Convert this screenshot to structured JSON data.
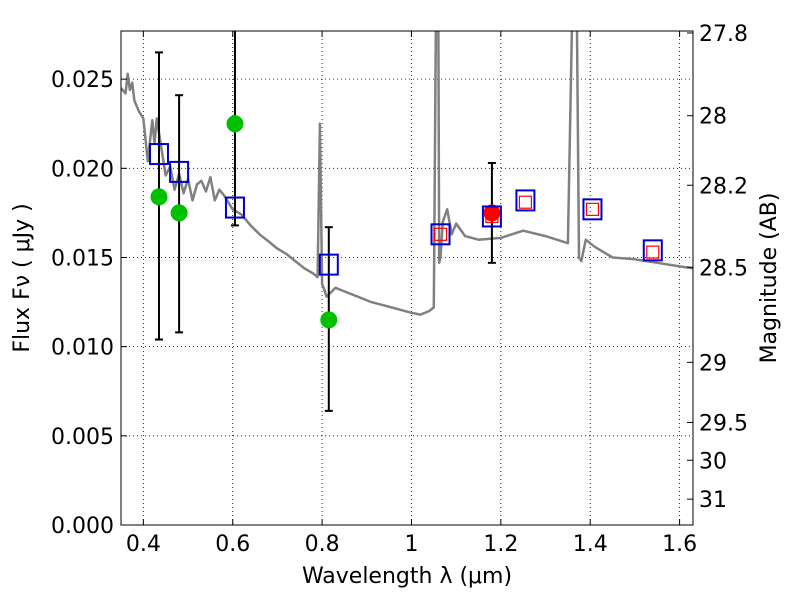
{
  "chart_data": {
    "type": "scatter",
    "xlabel": "Wavelength  λ (μm)",
    "ylabel_left": "Flux  Fν  ( μJy )",
    "ylabel_right": "Magnitude (AB)",
    "xlim": [
      0.35,
      1.63
    ],
    "ylim": [
      0.0,
      0.0277
    ],
    "grid": true,
    "x_ticks": [
      {
        "value": 0.4,
        "label": "0.4"
      },
      {
        "value": 0.6,
        "label": "0.6"
      },
      {
        "value": 0.8,
        "label": "0.8"
      },
      {
        "value": 1.0,
        "label": "1"
      },
      {
        "value": 1.2,
        "label": "1.2"
      },
      {
        "value": 1.4,
        "label": "1.4"
      },
      {
        "value": 1.6,
        "label": "1.6"
      }
    ],
    "y_ticks": [
      {
        "value": 0.0,
        "label": "0.000"
      },
      {
        "value": 0.005,
        "label": "0.005"
      },
      {
        "value": 0.01,
        "label": "0.010"
      },
      {
        "value": 0.015,
        "label": "0.015"
      },
      {
        "value": 0.02,
        "label": "0.020"
      },
      {
        "value": 0.025,
        "label": "0.025"
      }
    ],
    "mag_ticks": [
      {
        "label": "27.8",
        "flux": 0.02759
      },
      {
        "label": "28",
        "flux": 0.02295
      },
      {
        "label": "28.2",
        "flux": 0.01905
      },
      {
        "label": "28.5",
        "flux": 0.01445
      },
      {
        "label": "29",
        "flux": 0.00912
      },
      {
        "label": "29.5",
        "flux": 0.00575
      },
      {
        "label": "30",
        "flux": 0.00363
      },
      {
        "label": "31",
        "flux": 0.00145
      }
    ],
    "colors": {
      "model": "#808080",
      "green": "#00c000",
      "red": "#ff0000",
      "blue": "#0000cc",
      "errorbar": "#000000"
    },
    "model_sed": {
      "x": [
        0.35,
        0.36,
        0.365,
        0.37,
        0.375,
        0.38,
        0.39,
        0.4,
        0.41,
        0.42,
        0.425,
        0.43,
        0.44,
        0.45,
        0.46,
        0.47,
        0.48,
        0.49,
        0.5,
        0.51,
        0.52,
        0.53,
        0.54,
        0.55,
        0.56,
        0.57,
        0.58,
        0.59,
        0.6,
        0.62,
        0.64,
        0.66,
        0.68,
        0.7,
        0.72,
        0.74,
        0.76,
        0.78,
        0.79,
        0.795,
        0.8,
        0.805,
        0.81,
        0.83,
        0.85,
        0.88,
        0.91,
        0.94,
        0.97,
        1.0,
        1.02,
        1.04,
        1.05,
        1.055,
        1.06,
        1.062,
        1.065,
        1.07,
        1.08,
        1.09,
        1.1,
        1.12,
        1.15,
        1.2,
        1.25,
        1.3,
        1.35,
        1.36,
        1.365,
        1.37,
        1.375,
        1.38,
        1.39,
        1.41,
        1.45,
        1.5,
        1.55,
        1.6,
        1.63
      ],
      "y": [
        0.0245,
        0.0242,
        0.0253,
        0.0244,
        0.0248,
        0.0238,
        0.0232,
        0.0228,
        0.0204,
        0.0227,
        0.0214,
        0.0228,
        0.0212,
        0.0196,
        0.0201,
        0.0188,
        0.0197,
        0.0186,
        0.0194,
        0.0182,
        0.0191,
        0.0193,
        0.0187,
        0.0195,
        0.0182,
        0.0188,
        0.0185,
        0.0181,
        0.0177,
        0.0174,
        0.0168,
        0.0163,
        0.0159,
        0.0155,
        0.0152,
        0.0148,
        0.0144,
        0.0141,
        0.0139,
        0.0225,
        0.0135,
        0.0132,
        0.0128,
        0.0133,
        0.0131,
        0.0128,
        0.0125,
        0.0123,
        0.0121,
        0.0119,
        0.0118,
        0.012,
        0.0122,
        0.029,
        0.029,
        0.0147,
        0.015,
        0.017,
        0.0177,
        0.0163,
        0.0169,
        0.0162,
        0.016,
        0.0161,
        0.0165,
        0.0162,
        0.0158,
        0.029,
        0.029,
        0.029,
        0.015,
        0.0148,
        0.016,
        0.0156,
        0.015,
        0.0149,
        0.0147,
        0.0145,
        0.0144
      ]
    },
    "green_points": [
      {
        "x": 0.435,
        "y": 0.0184,
        "err_lo": 0.0104,
        "err_hi": 0.0265
      },
      {
        "x": 0.48,
        "y": 0.0175,
        "err_lo": 0.0108,
        "err_hi": 0.0241
      },
      {
        "x": 0.605,
        "y": 0.0225,
        "err_lo": 0.0168,
        "err_hi": 0.0285
      },
      {
        "x": 0.815,
        "y": 0.0115,
        "err_lo": 0.0064,
        "err_hi": 0.0167
      }
    ],
    "red_points": [
      {
        "x": 1.18,
        "y": 0.0175,
        "err_lo": 0.0147,
        "err_hi": 0.0203
      }
    ],
    "red_squares": [
      {
        "x": 1.065,
        "y": 0.0163
      },
      {
        "x": 1.18,
        "y": 0.0173
      },
      {
        "x": 1.255,
        "y": 0.0181
      },
      {
        "x": 1.405,
        "y": 0.0177
      },
      {
        "x": 1.54,
        "y": 0.0153
      }
    ],
    "blue_squares": [
      {
        "x": 0.435,
        "y": 0.0208
      },
      {
        "x": 0.48,
        "y": 0.0198
      },
      {
        "x": 0.605,
        "y": 0.0178
      },
      {
        "x": 0.815,
        "y": 0.0146
      },
      {
        "x": 1.065,
        "y": 0.0163
      },
      {
        "x": 1.18,
        "y": 0.0173
      },
      {
        "x": 1.255,
        "y": 0.0182
      },
      {
        "x": 1.405,
        "y": 0.0177
      },
      {
        "x": 1.54,
        "y": 0.0154
      }
    ]
  }
}
